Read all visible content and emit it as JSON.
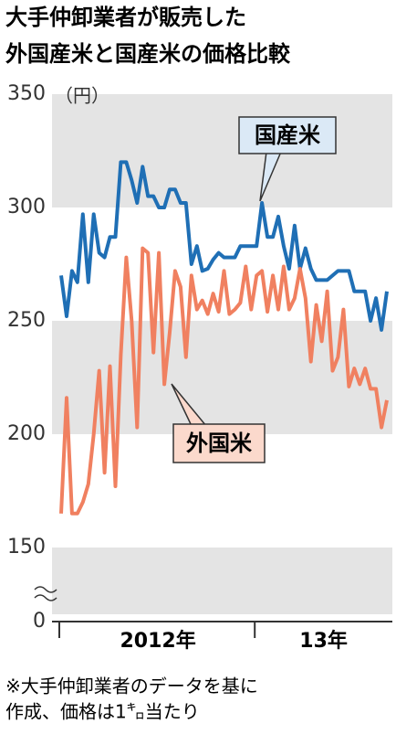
{
  "chart_data": {
    "type": "line",
    "title": [
      "大手仲卸業者が販売した",
      "外国産米と国産米の価格比較"
    ],
    "y_unit": "（円）",
    "categories": [
      null,
      null,
      null,
      null,
      null,
      null,
      null,
      null,
      null,
      null,
      null,
      null,
      null,
      null,
      null,
      null,
      null,
      null,
      null,
      null,
      null,
      null,
      null,
      null,
      null,
      null,
      null,
      null,
      null,
      null,
      null,
      null,
      null,
      null,
      null,
      null,
      null,
      null,
      null,
      null,
      null,
      null,
      null,
      null,
      null,
      null,
      null,
      null,
      null,
      null,
      null,
      null,
      null,
      null,
      null,
      null,
      null,
      null,
      null,
      null,
      null
    ],
    "year_labels": [
      "2012年",
      "13年"
    ],
    "year_starts": [
      0,
      36
    ],
    "series": [
      {
        "name": "国産米",
        "color": "#1f6fb5",
        "values": [
          270,
          252,
          272,
          267,
          297,
          267,
          297,
          280,
          278,
          287,
          287,
          320,
          320,
          312,
          302,
          318,
          305,
          305,
          300,
          300,
          308,
          308,
          302,
          302,
          275,
          283,
          272,
          273,
          277,
          280,
          278,
          278,
          278,
          283,
          283,
          283,
          283,
          302,
          287,
          287,
          296,
          283,
          273,
          292,
          273,
          282,
          273,
          268,
          268,
          268,
          270,
          272,
          272,
          272,
          263,
          263,
          263,
          250,
          260,
          246,
          263
        ]
      },
      {
        "name": "外国米",
        "color": "#f08060",
        "values": [
          165,
          216,
          165,
          165,
          170,
          178,
          200,
          228,
          183,
          230,
          177,
          235,
          278,
          250,
          203,
          282,
          280,
          236,
          280,
          222,
          245,
          272,
          265,
          234,
          270,
          255,
          259,
          253,
          262,
          254,
          272,
          253,
          255,
          258,
          274,
          255,
          270,
          272,
          254,
          270,
          255,
          274,
          255,
          260,
          273,
          260,
          232,
          257,
          241,
          263,
          228,
          234,
          255,
          221,
          229,
          222,
          229,
          220,
          220,
          203,
          215
        ]
      }
    ],
    "ylim": [
      150,
      350
    ],
    "yticks": [
      150,
      200,
      250,
      300,
      350
    ],
    "axis_floor": 0,
    "footnote": [
      "※大手仲卸業者のデータを基に",
      "作成、価格は1㌔当たり"
    ]
  }
}
